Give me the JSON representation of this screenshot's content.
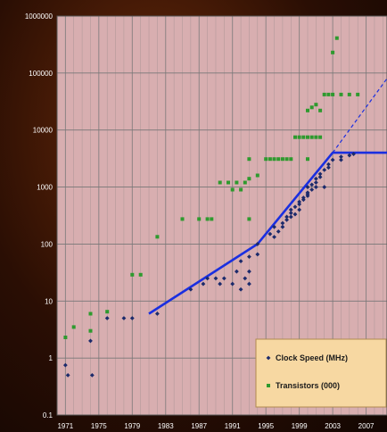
{
  "chart_data": {
    "type": "scatter",
    "title": "",
    "xlabel": "",
    "ylabel": "",
    "x_scale": "linear",
    "y_scale": "log",
    "xlim": [
      1970,
      2009.5
    ],
    "ylim": [
      0.1,
      1000000
    ],
    "x_ticks": [
      "1971",
      "1975",
      "1979",
      "1983",
      "1987",
      "1991",
      "1995",
      "1999",
      "2003",
      "2007"
    ],
    "y_ticks": [
      "0.1",
      "1",
      "10",
      "100",
      "1000",
      "10000",
      "100000",
      "1000000"
    ],
    "grid": true,
    "legend_position": "bottom-right",
    "colors": {
      "plot_background": "#d8aeb0",
      "grid": "#777777",
      "clock_speed": "#1b2a6b",
      "transistors": "#2e9a2e",
      "trend": "#1a2fe0",
      "legend_background": "#f7d8a2",
      "legend_border": "#b08a50",
      "tick_text": "#ffffff"
    },
    "series": [
      {
        "name": "Clock Speed (MHz)",
        "marker": "diamond",
        "points": [
          [
            1971,
            0.75
          ],
          [
            1971.3,
            0.5
          ],
          [
            1974,
            2
          ],
          [
            1974.2,
            0.5
          ],
          [
            1976,
            5
          ],
          [
            1978,
            5
          ],
          [
            1979,
            5
          ],
          [
            1982,
            6
          ],
          [
            1986,
            16
          ],
          [
            1987.5,
            20
          ],
          [
            1988,
            25
          ],
          [
            1989,
            25
          ],
          [
            1989.5,
            20
          ],
          [
            1990,
            25
          ],
          [
            1991,
            20
          ],
          [
            1991.5,
            33
          ],
          [
            1992,
            16
          ],
          [
            1992,
            50
          ],
          [
            1992.5,
            25
          ],
          [
            1993,
            20
          ],
          [
            1993,
            33
          ],
          [
            1993,
            60
          ],
          [
            1994,
            66
          ],
          [
            1994,
            100
          ],
          [
            1995.5,
            150
          ],
          [
            1996,
            133
          ],
          [
            1996,
            200
          ],
          [
            1996.5,
            166
          ],
          [
            1997,
            200
          ],
          [
            1997,
            233
          ],
          [
            1997.5,
            266
          ],
          [
            1997.5,
            300
          ],
          [
            1998,
            300
          ],
          [
            1998,
            350
          ],
          [
            1998,
            400
          ],
          [
            1998.5,
            333
          ],
          [
            1998.5,
            450
          ],
          [
            1999,
            400
          ],
          [
            1999,
            500
          ],
          [
            1999,
            550
          ],
          [
            1999.5,
            600
          ],
          [
            1999.5,
            650
          ],
          [
            2000,
            700
          ],
          [
            2000,
            750
          ],
          [
            2000,
            800
          ],
          [
            2000,
            1000
          ],
          [
            2000.5,
            900
          ],
          [
            2000.5,
            1100
          ],
          [
            2001,
            1000
          ],
          [
            2001,
            1200
          ],
          [
            2001,
            1400
          ],
          [
            2001.5,
            1500
          ],
          [
            2001.5,
            1700
          ],
          [
            2002,
            1000
          ],
          [
            2002,
            2000
          ],
          [
            2002.5,
            2200
          ],
          [
            2002.5,
            2500
          ],
          [
            2003,
            3000
          ],
          [
            2004,
            3000
          ],
          [
            2004,
            3400
          ],
          [
            2005,
            3600
          ],
          [
            2005.5,
            3800
          ]
        ]
      },
      {
        "name": "Transistors (000)",
        "marker": "square",
        "points": [
          [
            1971,
            2.3
          ],
          [
            1972,
            3.5
          ],
          [
            1974,
            6
          ],
          [
            1974,
            3
          ],
          [
            1976,
            6.5
          ],
          [
            1979,
            29
          ],
          [
            1980,
            29
          ],
          [
            1982,
            134
          ],
          [
            1985,
            275
          ],
          [
            1987,
            275
          ],
          [
            1988,
            275
          ],
          [
            1988.5,
            275
          ],
          [
            1989.5,
            1200
          ],
          [
            1990.5,
            1200
          ],
          [
            1991,
            900
          ],
          [
            1991.5,
            1200
          ],
          [
            1992,
            900
          ],
          [
            1992.5,
            1200
          ],
          [
            1993,
            1400
          ],
          [
            1993,
            3100
          ],
          [
            1993,
            275
          ],
          [
            1994,
            1600
          ],
          [
            1995,
            3100
          ],
          [
            1995.5,
            3100
          ],
          [
            1996,
            3100
          ],
          [
            1996.5,
            3100
          ],
          [
            1997,
            3100
          ],
          [
            1997.5,
            3100
          ],
          [
            1998,
            3100
          ],
          [
            1998.5,
            7500
          ],
          [
            1999,
            7500
          ],
          [
            1999.5,
            7500
          ],
          [
            2000,
            7500
          ],
          [
            2000.5,
            7500
          ],
          [
            2001,
            7500
          ],
          [
            2001.5,
            7500
          ],
          [
            2000,
            3100
          ],
          [
            2000,
            22000
          ],
          [
            2000.5,
            25000
          ],
          [
            2001,
            28000
          ],
          [
            2001.5,
            22000
          ],
          [
            2002,
            42000
          ],
          [
            2002.5,
            42000
          ],
          [
            2003,
            42000
          ],
          [
            2003,
            230000
          ],
          [
            2003.5,
            410000
          ],
          [
            2004,
            42000
          ],
          [
            2005,
            42000
          ],
          [
            2006,
            42000
          ]
        ]
      }
    ],
    "trend_lines": [
      {
        "style": "solid",
        "points": [
          [
            1981,
            6
          ],
          [
            1994,
            100
          ],
          [
            2003,
            4000
          ],
          [
            2009.5,
            4000
          ]
        ]
      },
      {
        "style": "dashed",
        "points": [
          [
            2003,
            4000
          ],
          [
            2009.5,
            80000
          ]
        ]
      }
    ]
  }
}
